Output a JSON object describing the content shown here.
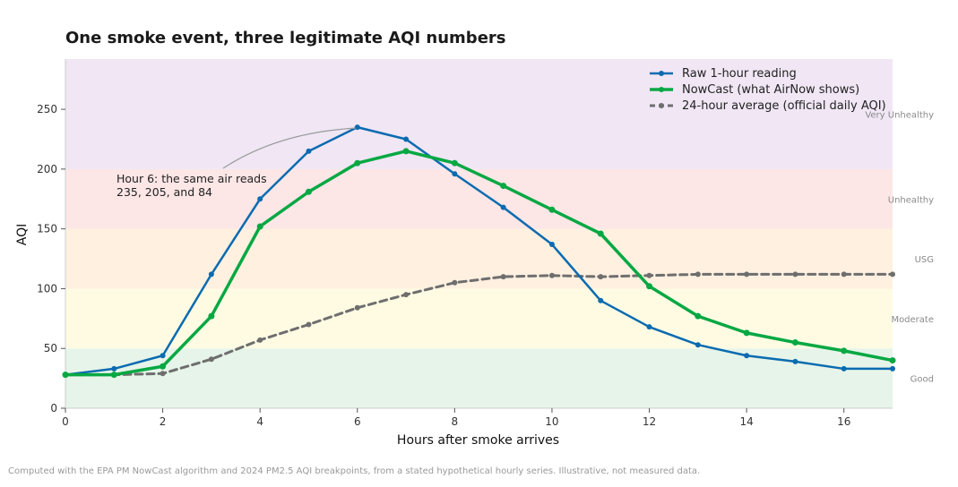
{
  "title": "One smoke event, three legitimate AQI numbers",
  "footnote": "Computed with the EPA PM NowCast algorithm and 2024 PM2.5 AQI breakpoints, from a stated hypothetical hourly series. Illustrative, not measured data.",
  "annotation": {
    "lines": [
      "Hour 6: the same air reads",
      "235, 205, and 84"
    ],
    "points_to": {
      "x": 6,
      "y": 235
    }
  },
  "chart_data": {
    "type": "line",
    "title": "One smoke event, three legitimate AQI numbers",
    "xlabel": "Hours after smoke arrives",
    "ylabel": "AQI",
    "xlim": [
      0,
      17
    ],
    "ylim": [
      0,
      292
    ],
    "xticks": [
      0,
      2,
      4,
      6,
      8,
      10,
      12,
      14,
      16
    ],
    "yticks": [
      0,
      50,
      100,
      150,
      200,
      250
    ],
    "grid": false,
    "legend_position": "top-right",
    "bands": [
      {
        "label": "Good",
        "from": 0,
        "to": 50,
        "color": "#e6f4e9"
      },
      {
        "label": "Moderate",
        "from": 50,
        "to": 100,
        "color": "#fffbe3"
      },
      {
        "label": "USG",
        "from": 100,
        "to": 150,
        "color": "#fff0e0"
      },
      {
        "label": "Unhealthy",
        "from": 150,
        "to": 200,
        "color": "#fce6e6"
      },
      {
        "label": "Very Unhealthy",
        "from": 200,
        "to": 292,
        "color": "#f0e6f4"
      }
    ],
    "series": [
      {
        "name": "Raw 1-hour reading",
        "color": "#0a6bb0",
        "style": "solid",
        "x": [
          0,
          1,
          2,
          3,
          4,
          5,
          6,
          7,
          8,
          9,
          10,
          11,
          12,
          13,
          14,
          15,
          16,
          17
        ],
        "values": [
          28,
          33,
          44,
          112,
          175,
          215,
          235,
          225,
          196,
          168,
          137,
          90,
          68,
          53,
          44,
          39,
          33,
          33
        ]
      },
      {
        "name": "NowCast (what AirNow shows)",
        "color": "#07a843",
        "style": "solid",
        "x": [
          0,
          1,
          2,
          3,
          4,
          5,
          6,
          7,
          8,
          9,
          10,
          11,
          12,
          13,
          14,
          15,
          16,
          17
        ],
        "values": [
          28,
          28,
          35,
          77,
          152,
          181,
          205,
          215,
          205,
          186,
          166,
          146,
          102,
          77,
          63,
          55,
          48,
          40
        ]
      },
      {
        "name": "24-hour average (official daily AQI)",
        "color": "#6e6e6e",
        "style": "dashed",
        "x": [
          0,
          1,
          2,
          3,
          4,
          5,
          6,
          7,
          8,
          9,
          10,
          11,
          12,
          13,
          14,
          15,
          16,
          17
        ],
        "values": [
          28,
          28,
          29,
          41,
          57,
          70,
          84,
          95,
          105,
          110,
          111,
          110,
          111,
          112,
          112,
          112,
          112,
          112
        ]
      }
    ]
  }
}
